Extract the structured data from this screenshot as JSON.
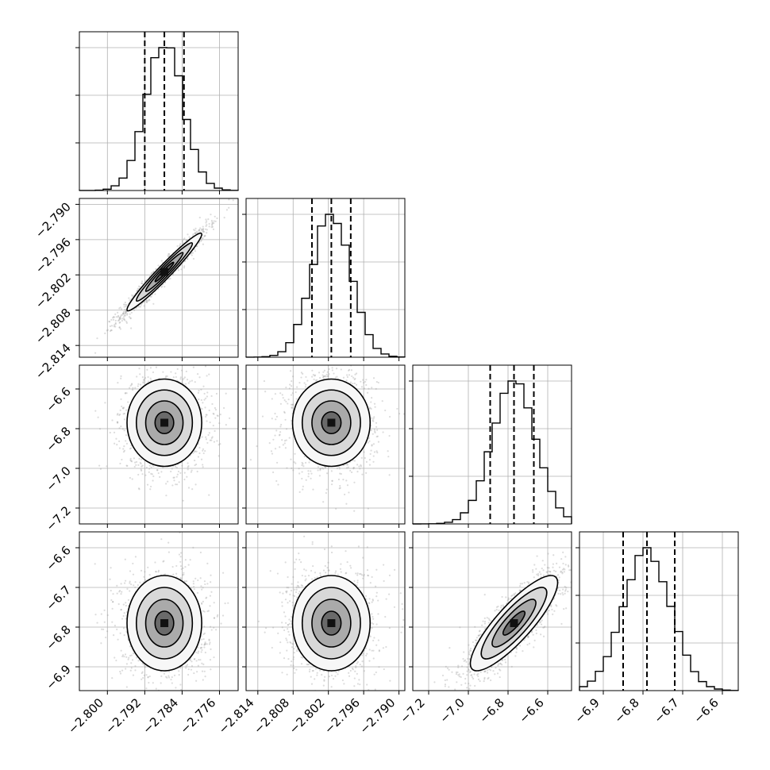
{
  "chart_data": {
    "type": "corner",
    "title": "",
    "grid": true,
    "parameters": [
      {
        "index": 0,
        "label": "",
        "range": [
          -2.806,
          -2.772
        ],
        "ticks": [
          -2.8,
          -2.792,
          -2.784,
          -2.776
        ],
        "tick_labels": [
          "−2.800",
          "−2.792",
          "−2.784",
          "−2.776"
        ],
        "quantiles": [
          -2.792,
          -2.7878,
          -2.7836
        ],
        "mean": -2.7878,
        "sigma": 0.004,
        "hist_ymax": 1.0
      },
      {
        "index": 1,
        "label": "",
        "range": [
          -2.816,
          -2.789
        ],
        "ticks": [
          -2.814,
          -2.808,
          -2.802,
          -2.796,
          -2.79
        ],
        "tick_labels": [
          "−2.814",
          "−2.808",
          "−2.802",
          "−2.796",
          "−2.790"
        ],
        "quantiles": [
          -2.8048,
          -2.8015,
          -2.7982
        ],
        "mean": -2.8015,
        "sigma": 0.0033,
        "hist_ymax": 1.0
      },
      {
        "index": 2,
        "label": "",
        "range": [
          -7.28,
          -6.48
        ],
        "ticks": [
          -7.2,
          -7.0,
          -6.8,
          -6.6
        ],
        "tick_labels": [
          "−7.2",
          "−7.0",
          "−6.8",
          "−6.6"
        ],
        "quantiles": [
          -6.89,
          -6.77,
          -6.67
        ],
        "mean": -6.77,
        "sigma": 0.11,
        "hist_ymax": 1.0
      },
      {
        "index": 3,
        "label": "",
        "range": [
          -6.96,
          -6.56
        ],
        "ticks": [
          -6.9,
          -6.8,
          -6.7,
          -6.6
        ],
        "tick_labels": [
          "−6.9",
          "−6.8",
          "−6.7",
          "−6.6"
        ],
        "quantiles": [
          -6.85,
          -6.79,
          -6.72
        ],
        "mean": -6.79,
        "sigma": 0.06,
        "hist_ymax": 1.0
      }
    ],
    "pairs": [
      {
        "x": 0,
        "y": 1,
        "correlation": 0.97,
        "peak": [
          -2.7878,
          -2.8015
        ]
      },
      {
        "x": 0,
        "y": 2,
        "correlation": 0.0,
        "peak": [
          -2.7878,
          -6.77
        ]
      },
      {
        "x": 1,
        "y": 2,
        "correlation": 0.0,
        "peak": [
          -2.8015,
          -6.77
        ]
      },
      {
        "x": 0,
        "y": 3,
        "correlation": 0.0,
        "peak": [
          -2.7878,
          -6.79
        ]
      },
      {
        "x": 1,
        "y": 3,
        "correlation": 0.0,
        "peak": [
          -2.8015,
          -6.79
        ]
      },
      {
        "x": 2,
        "y": 3,
        "correlation": 0.85,
        "peak": [
          -6.77,
          -6.79
        ]
      }
    ],
    "contour_levels_sigma": [
      0.5,
      1.0,
      1.5,
      2.0
    ],
    "quantile_probs": [
      0.16,
      0.5,
      0.84
    ]
  }
}
